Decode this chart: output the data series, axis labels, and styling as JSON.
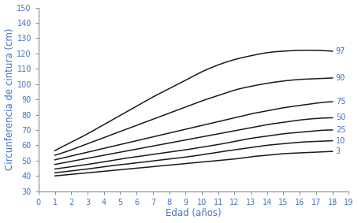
{
  "title": "",
  "xlabel": "Edad (años)",
  "ylabel": "Circunferencia de cintura (cm)",
  "xlim": [
    0,
    19
  ],
  "ylim": [
    30,
    150
  ],
  "xticks": [
    0,
    1,
    2,
    3,
    4,
    5,
    6,
    7,
    8,
    9,
    10,
    11,
    12,
    13,
    14,
    15,
    16,
    17,
    18,
    19
  ],
  "yticks": [
    30,
    40,
    50,
    60,
    70,
    80,
    90,
    100,
    110,
    120,
    130,
    140,
    150
  ],
  "ages": [
    1,
    2,
    3,
    4,
    5,
    6,
    7,
    8,
    9,
    10,
    11,
    12,
    13,
    14,
    15,
    16,
    17,
    18
  ],
  "percentiles": {
    "3": [
      40.0,
      41.0,
      42.0,
      43.0,
      44.0,
      45.0,
      46.0,
      47.0,
      48.0,
      49.0,
      50.0,
      51.0,
      52.5,
      53.5,
      54.5,
      55.0,
      55.5,
      56.0
    ],
    "10": [
      42.0,
      43.2,
      44.5,
      46.0,
      47.3,
      48.5,
      49.8,
      51.0,
      52.3,
      53.8,
      55.5,
      57.0,
      58.5,
      60.0,
      61.0,
      62.0,
      62.5,
      63.0
    ],
    "25": [
      44.5,
      46.0,
      47.5,
      49.2,
      51.0,
      52.5,
      54.0,
      55.5,
      57.0,
      58.8,
      60.5,
      62.5,
      64.5,
      66.0,
      67.5,
      68.5,
      69.5,
      70.0
    ],
    "50": [
      47.5,
      49.5,
      51.5,
      53.5,
      55.5,
      57.5,
      59.5,
      61.5,
      63.5,
      65.5,
      67.5,
      69.5,
      71.5,
      73.5,
      75.0,
      76.5,
      77.5,
      78.0
    ],
    "75": [
      50.5,
      53.0,
      55.5,
      58.0,
      60.5,
      63.0,
      65.5,
      68.0,
      70.5,
      73.0,
      75.5,
      78.0,
      80.5,
      82.5,
      84.5,
      86.0,
      87.5,
      88.5
    ],
    "90": [
      53.5,
      57.0,
      61.0,
      65.0,
      69.0,
      73.0,
      77.0,
      81.0,
      85.0,
      89.0,
      92.5,
      96.0,
      98.5,
      100.5,
      102.0,
      103.0,
      103.5,
      104.0
    ],
    "97": [
      56.5,
      62.0,
      67.5,
      73.5,
      79.5,
      85.5,
      91.5,
      97.0,
      102.5,
      108.0,
      112.5,
      116.0,
      118.5,
      120.5,
      121.5,
      122.0,
      122.0,
      121.5
    ]
  },
  "line_color": "#1a1a1a",
  "label_color": "#4472c4",
  "tick_color": "#4472c4",
  "axis_label_color": "#4472c4",
  "spine_color": "#888888",
  "line_width": 1.1,
  "label_fontsize": 7,
  "axis_label_fontsize": 8.5,
  "tick_fontsize": 7
}
